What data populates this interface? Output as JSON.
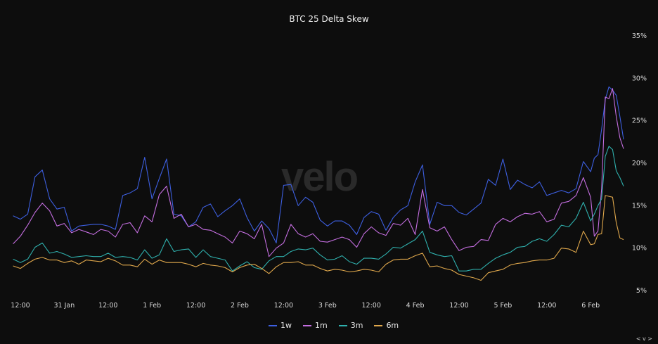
{
  "chart_data": {
    "type": "line",
    "title": "BTC 25 Delta Skew",
    "watermark": "velo",
    "xlabel": "",
    "ylabel": "",
    "x_unit": "hours since 30 Jan 12:00",
    "x_hours": [
      -2,
      0,
      2,
      4,
      6,
      8,
      10,
      12,
      14,
      16,
      18,
      20,
      22,
      24,
      26,
      28,
      30,
      32,
      34,
      36,
      38,
      40,
      42,
      44,
      46,
      48,
      50,
      52,
      54,
      56,
      58,
      60,
      62,
      64,
      66,
      68,
      70,
      72,
      74,
      76,
      78,
      80,
      82,
      84,
      86,
      88,
      90,
      92,
      94,
      96,
      98,
      100,
      102,
      104,
      106,
      108,
      110,
      112,
      114,
      116,
      118,
      120,
      122,
      124,
      126,
      128,
      130,
      132,
      134,
      136,
      138,
      140,
      142,
      144,
      146,
      148,
      150,
      152,
      154,
      156,
      157,
      158,
      159,
      160,
      161,
      162,
      163,
      164,
      165
    ],
    "x_ticks": [
      {
        "t": 0,
        "label": "12:00"
      },
      {
        "t": 12,
        "label": "31 Jan"
      },
      {
        "t": 24,
        "label": "12:00"
      },
      {
        "t": 36,
        "label": "1 Feb"
      },
      {
        "t": 48,
        "label": "12:00"
      },
      {
        "t": 60,
        "label": "2 Feb"
      },
      {
        "t": 72,
        "label": "12:00"
      },
      {
        "t": 84,
        "label": "3 Feb"
      },
      {
        "t": 96,
        "label": "12:00"
      },
      {
        "t": 108,
        "label": "4 Feb"
      },
      {
        "t": 120,
        "label": "12:00"
      },
      {
        "t": 132,
        "label": "5 Feb"
      },
      {
        "t": 144,
        "label": "12:00"
      },
      {
        "t": 156,
        "label": "6 Feb"
      }
    ],
    "y_ticks": [
      {
        "v": 35,
        "label": "35%"
      },
      {
        "v": 30,
        "label": "30%"
      },
      {
        "v": 25,
        "label": "25%"
      },
      {
        "v": 20,
        "label": "20%"
      },
      {
        "v": 15,
        "label": "15%"
      },
      {
        "v": 10,
        "label": "10%"
      },
      {
        "v": 5,
        "label": "5%"
      }
    ],
    "ylim": [
      5,
      35
    ],
    "grid": false,
    "legend_position": "bottom-center",
    "series": [
      {
        "name": "1w",
        "color": "#3d5fe0",
        "values": [
          13.8,
          13.4,
          14,
          18.4,
          19.2,
          15.8,
          14.6,
          14.8,
          12,
          12.6,
          12.7,
          12.8,
          12.8,
          12.6,
          12.2,
          16.2,
          16.5,
          17,
          20.7,
          15.8,
          18.2,
          20.5,
          14,
          13.8,
          12.5,
          13.1,
          14.8,
          15.2,
          13.7,
          14.4,
          15,
          15.8,
          13.6,
          12,
          13.2,
          12.3,
          10.6,
          17.4,
          17.5,
          15,
          16,
          15.4,
          13.3,
          12.6,
          13.2,
          13.2,
          12.7,
          11.6,
          13.6,
          14.3,
          14,
          12.1,
          13.6,
          14.5,
          15,
          17.8,
          19.8,
          12.8,
          15.4,
          15,
          15,
          14.2,
          13.9,
          14.6,
          15.3,
          18.1,
          17.4,
          20.5,
          16.9,
          18,
          17.5,
          17.1,
          17.8,
          16.2,
          16.5,
          16.8,
          16.5,
          17,
          20.2,
          19,
          20.6,
          21,
          24,
          27.5,
          29,
          28.6,
          28,
          25.5,
          22.8
        ]
      },
      {
        "name": "1m",
        "color": "#c46ee0",
        "values": [
          10.5,
          11.4,
          12.7,
          14.2,
          15.3,
          14.4,
          12.6,
          12.9,
          11.8,
          12.2,
          11.9,
          11.6,
          12.2,
          12,
          11.3,
          12.8,
          13,
          11.8,
          13.8,
          13.1,
          16.3,
          17.3,
          13.5,
          14,
          12.5,
          12.8,
          12.2,
          12.1,
          11.7,
          11.3,
          10.6,
          12,
          11.7,
          11.1,
          12.8,
          9,
          10,
          10.6,
          12.8,
          11.7,
          11.3,
          11.7,
          10.8,
          10.7,
          11,
          11.3,
          11,
          10.1,
          11.7,
          12.5,
          11.8,
          11.5,
          12.9,
          12.7,
          13.5,
          11.6,
          16.9,
          12.4,
          12,
          12.5,
          11,
          9.7,
          10.1,
          10.2,
          11,
          10.9,
          12.8,
          13.5,
          13.1,
          13.7,
          14.1,
          14,
          14.3,
          13.1,
          13.4,
          15.3,
          15.5,
          16.2,
          18.3,
          16,
          11.4,
          12,
          17,
          27.8,
          27.6,
          28.8,
          25.5,
          23,
          21.7
        ]
      },
      {
        "name": "3m",
        "color": "#2fb0ad",
        "values": [
          8.7,
          8.3,
          8.7,
          10.1,
          10.6,
          9.4,
          9.6,
          9.3,
          8.9,
          9,
          9.1,
          9,
          9,
          9.4,
          8.9,
          9,
          8.9,
          8.6,
          9.8,
          8.8,
          9.2,
          11.1,
          9.6,
          9.8,
          9.9,
          8.9,
          9.8,
          9,
          8.8,
          8.6,
          7.3,
          7.9,
          8.4,
          7.7,
          7.5,
          8.5,
          9,
          9,
          9.6,
          9.9,
          9.8,
          10,
          9.2,
          8.6,
          8.7,
          9.1,
          8.4,
          8.1,
          8.8,
          8.8,
          8.7,
          9.3,
          10.1,
          10,
          10.5,
          11,
          12,
          9.5,
          9.2,
          9,
          9.1,
          7.3,
          7.3,
          7.5,
          7.5,
          8.2,
          8.8,
          9.2,
          9.5,
          10.1,
          10.2,
          10.8,
          11.1,
          10.8,
          11.6,
          12.7,
          12.5,
          13.5,
          15.4,
          13.2,
          14,
          15,
          15.8,
          20.8,
          22,
          21.6,
          19.1,
          18.3,
          17.3
        ]
      },
      {
        "name": "6m",
        "color": "#e0a84c",
        "values": [
          7.9,
          7.6,
          8.2,
          8.7,
          8.9,
          8.6,
          8.6,
          8.3,
          8.5,
          8.1,
          8.6,
          8.5,
          8.4,
          8.8,
          8.5,
          8,
          8,
          7.8,
          8.7,
          8.1,
          8.6,
          8.3,
          8.3,
          8.3,
          8.1,
          7.8,
          8.2,
          8,
          7.9,
          7.7,
          7.2,
          7.7,
          8,
          8.1,
          7.6,
          7,
          7.8,
          8.3,
          8.3,
          8.4,
          8,
          8,
          7.6,
          7.3,
          7.5,
          7.4,
          7.2,
          7.3,
          7.5,
          7.4,
          7.2,
          8.1,
          8.6,
          8.7,
          8.7,
          9.1,
          9.4,
          7.8,
          7.9,
          7.6,
          7.4,
          6.9,
          6.7,
          6.5,
          6.2,
          7.1,
          7.3,
          7.5,
          8,
          8.2,
          8.3,
          8.5,
          8.6,
          8.6,
          8.8,
          10,
          9.9,
          9.5,
          12,
          10.4,
          10.5,
          11.6,
          11.7,
          16.2,
          16.1,
          16,
          13,
          11.2,
          11
        ]
      }
    ]
  },
  "nav": {
    "label": "< v >"
  }
}
